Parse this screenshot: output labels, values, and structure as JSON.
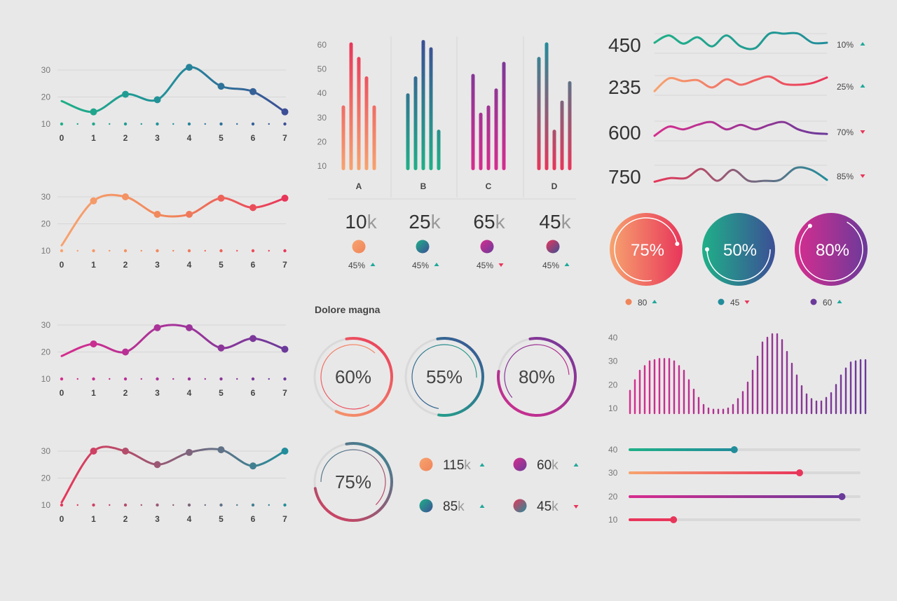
{
  "colors": {
    "green": "#1fb088",
    "teal": "#228d9b",
    "navy": "#3c4f96",
    "orange": "#f7a36f",
    "salmon": "#f0855a",
    "red": "#e8365a",
    "magenta": "#d62d8e",
    "purple": "#6b3a9a",
    "grid": "#d6d6d6",
    "text": "#444444",
    "axis": "#777777",
    "up": "#1fa89b",
    "down": "#e8365a"
  },
  "chart_data": [
    {
      "type": "line",
      "id": "line-chart-1",
      "x": [
        0,
        1,
        2,
        3,
        4,
        5,
        6,
        7
      ],
      "y_ticks": [
        10,
        20,
        30
      ],
      "ylim": [
        10,
        30
      ],
      "values": [
        18.5,
        14.5,
        21,
        19,
        31,
        24,
        22,
        14.5
      ],
      "gradient": [
        "#1fb088",
        "#228d9b",
        "#3c4f96"
      ]
    },
    {
      "type": "line",
      "id": "line-chart-2",
      "x": [
        0,
        1,
        2,
        3,
        4,
        5,
        6,
        7
      ],
      "y_ticks": [
        10,
        20,
        30
      ],
      "ylim": [
        10,
        30
      ],
      "values": [
        12,
        28.5,
        30,
        23.5,
        23.5,
        29.5,
        26,
        29.5
      ],
      "gradient": [
        "#f7a36f",
        "#f0855a",
        "#e8365a"
      ]
    },
    {
      "type": "line",
      "id": "line-chart-3",
      "x": [
        0,
        1,
        2,
        3,
        4,
        5,
        6,
        7
      ],
      "y_ticks": [
        10,
        20,
        30
      ],
      "ylim": [
        10,
        30
      ],
      "values": [
        18.5,
        23,
        20,
        29,
        29,
        21.5,
        25,
        21
      ],
      "gradient": [
        "#d62d8e",
        "#a4339a",
        "#6b3a9a"
      ]
    },
    {
      "type": "line",
      "id": "line-chart-4",
      "x": [
        0,
        1,
        2,
        3,
        4,
        5,
        6,
        7
      ],
      "y_ticks": [
        10,
        20,
        30
      ],
      "ylim": [
        10,
        30
      ],
      "values": [
        11,
        30,
        30,
        25,
        29.5,
        30.5,
        24.5,
        30
      ],
      "gradient": [
        "#e8365a",
        "#8d5e78",
        "#228d9b"
      ]
    },
    {
      "type": "bar",
      "id": "grouped-bar-chart",
      "categories": [
        "A",
        "B",
        "C",
        "D"
      ],
      "y_ticks": [
        10,
        20,
        30,
        40,
        50,
        60
      ],
      "ylim": [
        5,
        65
      ],
      "series_values": [
        [
          35,
          61,
          55,
          47,
          35
        ],
        [
          40,
          47,
          62,
          59,
          25
        ],
        [
          48,
          32,
          35,
          42,
          53
        ],
        [
          55,
          61,
          25,
          37,
          45
        ]
      ],
      "gradients": [
        [
          "#f7a36f",
          "#e8365a"
        ],
        [
          "#1fb088",
          "#3c4f96"
        ],
        [
          "#d62d8e",
          "#6b3a9a"
        ],
        [
          "#e8365a",
          "#228d9b"
        ]
      ]
    },
    {
      "type": "line",
      "id": "sparkline-chart",
      "rows": [
        {
          "label": "450",
          "percent": "10%",
          "trend": "up",
          "gradient": [
            "#1fb088",
            "#228d9b"
          ],
          "values": [
            0.5,
            0.9,
            0.45,
            0.8,
            0.3,
            0.9,
            0.3,
            0.2,
            1,
            1,
            1,
            0.5,
            0.5
          ]
        },
        {
          "label": "235",
          "percent": "25%",
          "trend": "up",
          "gradient": [
            "#f7a36f",
            "#e8365a"
          ],
          "values": [
            0.15,
            0.85,
            0.7,
            0.75,
            0.35,
            0.8,
            0.5,
            0.75,
            0.95,
            0.55,
            0.5,
            0.6,
            0.9
          ]
        },
        {
          "label": "600",
          "percent": "70%",
          "trend": "down",
          "gradient": [
            "#d62d8e",
            "#6b3a9a"
          ],
          "values": [
            0.2,
            0.7,
            0.55,
            0.8,
            0.95,
            0.55,
            0.8,
            0.55,
            0.8,
            0.95,
            0.55,
            0.35,
            0.3
          ]
        },
        {
          "label": "750",
          "percent": "85%",
          "trend": "down",
          "gradient": [
            "#e8365a",
            "#228d9b"
          ],
          "values": [
            0.1,
            0.3,
            0.3,
            0.8,
            0.15,
            0.75,
            0.15,
            0.15,
            0.2,
            0.85,
            0.75,
            0.2
          ]
        }
      ]
    },
    {
      "type": "bar",
      "id": "wave-bar-chart",
      "y_ticks": [
        10,
        20,
        30,
        40
      ],
      "ylim": [
        6.5,
        42.5
      ],
      "values": [
        17.5,
        22,
        26,
        28,
        30,
        30.5,
        31,
        31,
        31,
        30,
        28,
        26,
        22,
        18,
        14.5,
        11.5,
        10,
        9.5,
        9.5,
        9.5,
        10,
        11.5,
        14,
        17,
        21,
        26,
        32,
        38,
        40,
        41.5,
        41.5,
        39,
        34,
        29,
        24,
        19.5,
        16,
        14,
        13,
        13,
        14.5,
        16.5,
        20,
        24,
        27,
        29.5,
        30,
        30.5,
        30.5
      ],
      "gradient": [
        "#d62d8e",
        "#6b3a9a"
      ]
    },
    {
      "type": "bar",
      "id": "progress-slider-chart",
      "categories": [
        "40",
        "30",
        "20",
        "10"
      ],
      "fractions": [
        0.455,
        0.74,
        0.925,
        0.19
      ],
      "gradients": [
        [
          "#1fb088",
          "#228d9b"
        ],
        [
          "#f7a36f",
          "#e8365a"
        ],
        [
          "#d62d8e",
          "#6b3a9a"
        ],
        [
          "#e8365a",
          "#e8365a"
        ]
      ]
    }
  ],
  "stats": [
    {
      "value": "10",
      "unit": "k",
      "pct": "45%",
      "trend": "up",
      "g": [
        "#f7a36f",
        "#f0855a"
      ]
    },
    {
      "value": "25",
      "unit": "k",
      "pct": "45%",
      "trend": "up",
      "g": [
        "#1fb088",
        "#3c4f96"
      ]
    },
    {
      "value": "65",
      "unit": "k",
      "pct": "45%",
      "trend": "down",
      "g": [
        "#d62d8e",
        "#6b3a9a"
      ]
    },
    {
      "value": "45",
      "unit": "k",
      "pct": "45%",
      "trend": "up",
      "g": [
        "#e8365a",
        "#3c4f96"
      ]
    }
  ],
  "big_circles": [
    {
      "label": "75%",
      "value": 0.75,
      "legend": "80",
      "trend": "up",
      "dot": "#f0855a",
      "g": [
        "#f7a36f",
        "#e8365a"
      ]
    },
    {
      "label": "50%",
      "value": 0.5,
      "legend": "45",
      "trend": "down",
      "dot": "#228d9b",
      "g": [
        "#1fb088",
        "#3c4f96"
      ]
    },
    {
      "label": "80%",
      "value": 0.8,
      "legend": "60",
      "trend": "up",
      "dot": "#6b3a9a",
      "g": [
        "#d62d8e",
        "#6b3a9a"
      ]
    }
  ],
  "section_title": "Dolore magna",
  "donuts": [
    {
      "label": "60%",
      "value": 0.6,
      "g": [
        "#f7a36f",
        "#e8365a"
      ]
    },
    {
      "label": "55%",
      "value": 0.55,
      "g": [
        "#1fb088",
        "#3c4f96"
      ]
    },
    {
      "label": "80%",
      "value": 0.8,
      "g": [
        "#d62d8e",
        "#6b3a9a"
      ]
    },
    {
      "label": "75%",
      "value": 0.75,
      "g": [
        "#e8365a",
        "#228d9b"
      ]
    }
  ],
  "legend_items": [
    {
      "value": "115",
      "unit": "k",
      "trend": "up",
      "g": [
        "#f7a36f",
        "#f0855a"
      ]
    },
    {
      "value": "60",
      "unit": "k",
      "trend": "up",
      "g": [
        "#d62d8e",
        "#6b3a9a"
      ]
    },
    {
      "value": "85",
      "unit": "k",
      "trend": "up",
      "g": [
        "#1fb088",
        "#3c4f96"
      ]
    },
    {
      "value": "45",
      "unit": "k",
      "trend": "down",
      "g": [
        "#e8365a",
        "#228d9b"
      ]
    }
  ]
}
